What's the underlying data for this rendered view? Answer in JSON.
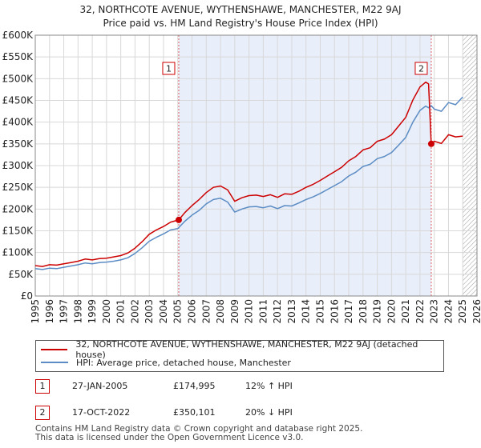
{
  "chart_data": {
    "type": "line",
    "title": "32, NORTHCOTE AVENUE, WYTHENSHAWE, MANCHESTER, M22 9AJ",
    "subtitle": "Price paid vs. HM Land Registry's House Price Index (HPI)",
    "xlabel": "",
    "ylabel": "",
    "xlim": [
      1995,
      2026
    ],
    "ylim": [
      0,
      600000
    ],
    "grid": true,
    "x_ticks": [
      "1995",
      "1996",
      "1997",
      "1998",
      "1999",
      "2000",
      "2001",
      "2002",
      "2003",
      "2004",
      "2005",
      "2006",
      "2007",
      "2008",
      "2009",
      "2010",
      "2011",
      "2012",
      "2013",
      "2014",
      "2015",
      "2016",
      "2017",
      "2018",
      "2019",
      "2020",
      "2021",
      "2022",
      "2023",
      "2024",
      "2025",
      "2026"
    ],
    "y_ticks": [
      "£0",
      "£50K",
      "£100K",
      "£150K",
      "£200K",
      "£250K",
      "£300K",
      "£350K",
      "£400K",
      "£450K",
      "£500K",
      "£550K",
      "£600K"
    ],
    "shaded_region": [
      2005.07,
      2022.79
    ],
    "future_hatch_from": 2025.0,
    "series": [
      {
        "name": "32, NORTHCOTE AVENUE, WYTHENSHAWE, MANCHESTER, M22 9AJ (detached house)",
        "color": "#cc0000",
        "x": [
          1995,
          1995.5,
          1996,
          1996.5,
          1997,
          1997.5,
          1998,
          1998.5,
          1999,
          1999.5,
          2000,
          2000.5,
          2001,
          2001.5,
          2002,
          2002.5,
          2003,
          2003.5,
          2004,
          2004.5,
          2005.07,
          2005.5,
          2006,
          2006.5,
          2007,
          2007.5,
          2008,
          2008.5,
          2009,
          2009.5,
          2010,
          2010.5,
          2011,
          2011.5,
          2012,
          2012.5,
          2013,
          2013.5,
          2014,
          2014.5,
          2015,
          2015.5,
          2016,
          2016.5,
          2017,
          2017.5,
          2018,
          2018.5,
          2019,
          2019.5,
          2020,
          2020.5,
          2021,
          2021.5,
          2022,
          2022.4,
          2022.6,
          2022.79,
          2023,
          2023.5,
          2024,
          2024.5,
          2025
        ],
        "values": [
          70000,
          68000,
          72000,
          71000,
          74000,
          77000,
          80000,
          85000,
          83000,
          86000,
          87000,
          90000,
          93000,
          99000,
          110000,
          125000,
          142000,
          152000,
          160000,
          170000,
          174995,
          192000,
          208000,
          222000,
          238000,
          250000,
          253000,
          244000,
          218000,
          226000,
          231000,
          232000,
          229000,
          233000,
          227000,
          235000,
          234000,
          241000,
          250000,
          257000,
          266000,
          276000,
          286000,
          296000,
          311000,
          321000,
          336000,
          341000,
          356000,
          361000,
          371000,
          391000,
          411000,
          451000,
          481000,
          492000,
          488000,
          350101,
          356000,
          351000,
          371000,
          366000,
          368000
        ]
      },
      {
        "name": "HPI: Average price, detached house, Manchester",
        "color": "#5b8cc4",
        "x": [
          1995,
          1995.5,
          1996,
          1996.5,
          1997,
          1997.5,
          1998,
          1998.5,
          1999,
          1999.5,
          2000,
          2000.5,
          2001,
          2001.5,
          2002,
          2002.5,
          2003,
          2003.5,
          2004,
          2004.5,
          2005,
          2005.5,
          2006,
          2006.5,
          2007,
          2007.5,
          2008,
          2008.5,
          2009,
          2009.5,
          2010,
          2010.5,
          2011,
          2011.5,
          2012,
          2012.5,
          2013,
          2013.5,
          2014,
          2014.5,
          2015,
          2015.5,
          2016,
          2016.5,
          2017,
          2017.5,
          2018,
          2018.5,
          2019,
          2019.5,
          2020,
          2020.5,
          2021,
          2021.5,
          2022,
          2022.4,
          2022.6,
          2022.79,
          2023,
          2023.5,
          2024,
          2024.5,
          2025
        ],
        "values": [
          63000,
          61000,
          64000,
          63000,
          66000,
          69000,
          72000,
          76000,
          74000,
          77000,
          78000,
          80000,
          83000,
          88000,
          98000,
          111000,
          126000,
          135000,
          143000,
          152000,
          155000,
          172000,
          186000,
          197000,
          212000,
          222000,
          225000,
          216000,
          193000,
          200000,
          205000,
          206000,
          203000,
          207000,
          201000,
          208000,
          207000,
          214000,
          222000,
          228000,
          236000,
          245000,
          254000,
          263000,
          276000,
          285000,
          298000,
          303000,
          316000,
          321000,
          330000,
          347000,
          365000,
          400000,
          427000,
          437000,
          433000,
          438000,
          430000,
          425000,
          445000,
          440000,
          458000
        ]
      }
    ],
    "markers": [
      {
        "label": "1",
        "x": 2005.07,
        "y": 174995
      },
      {
        "label": "2",
        "x": 2022.79,
        "y": 350101
      }
    ]
  },
  "legend": {
    "entries": [
      {
        "label": "32, NORTHCOTE AVENUE, WYTHENSHAWE, MANCHESTER, M22 9AJ (detached house)",
        "color": "#cc0000"
      },
      {
        "label": "HPI: Average price, detached house, Manchester",
        "color": "#5b8cc4"
      }
    ]
  },
  "transactions": [
    {
      "num": "1",
      "date": "27-JAN-2005",
      "price": "£174,995",
      "hpi": "12% ↑ HPI"
    },
    {
      "num": "2",
      "date": "17-OCT-2022",
      "price": "£350,101",
      "hpi": "20% ↓ HPI"
    }
  ],
  "footer": {
    "line1": "Contains HM Land Registry data © Crown copyright and database right 2025.",
    "line2": "This data is licensed under the Open Government Licence v3.0."
  }
}
